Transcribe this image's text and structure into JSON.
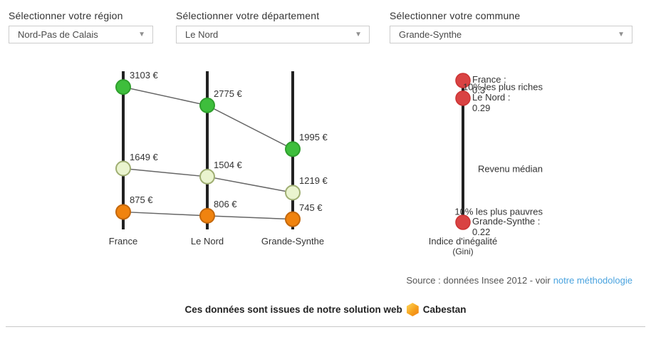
{
  "selectors": {
    "region": {
      "label": "Sélectionner votre région",
      "value": "Nord-Pas de Calais"
    },
    "departement": {
      "label": "Sélectionner votre département",
      "value": "Le Nord"
    },
    "commune": {
      "label": "Sélectionner votre commune",
      "value": "Grande-Synthe"
    }
  },
  "chart_data": {
    "type": "line",
    "subtype": "slopegraph",
    "categories": [
      "France",
      "Le Nord",
      "Grande-Synthe"
    ],
    "series": [
      {
        "name": "10% les plus riches",
        "values": [
          3103,
          2775,
          1995
        ],
        "color": "#3ebe3c",
        "stroke": "#2f9f2d"
      },
      {
        "name": "Revenu médian",
        "values": [
          1649,
          1504,
          1219
        ],
        "color": "#eaf4cf",
        "stroke": "#9fae72"
      },
      {
        "name": "10% les plus pauvres",
        "values": [
          875,
          806,
          745
        ],
        "color": "#f0830f",
        "stroke": "#c4680c"
      }
    ],
    "unit": "€",
    "value_suffix": " €",
    "axis_color": "#212121",
    "connector_color": "#666666",
    "gini": {
      "title": "Indice d'inégalité",
      "subtitle": "(Gini)",
      "points": [
        {
          "name": "France",
          "value": 0.3,
          "display": "0.3"
        },
        {
          "name": "Le Nord",
          "value": 0.29,
          "display": "0.29"
        },
        {
          "name": "Grande-Synthe",
          "value": 0.22,
          "display": "0.22"
        }
      ],
      "color": "#d94343",
      "stroke": "#cc3333"
    }
  },
  "source": {
    "prefix": "Source : données Insee 2012 - voir",
    "link_text": "notre méthodologie"
  },
  "footer": {
    "text": "Ces données sont issues de notre solution web",
    "brand": "Cabestan",
    "logo": "cabestan-hexagon-logo",
    "logo_colors": [
      "#ffd95e",
      "#f07d12"
    ]
  }
}
